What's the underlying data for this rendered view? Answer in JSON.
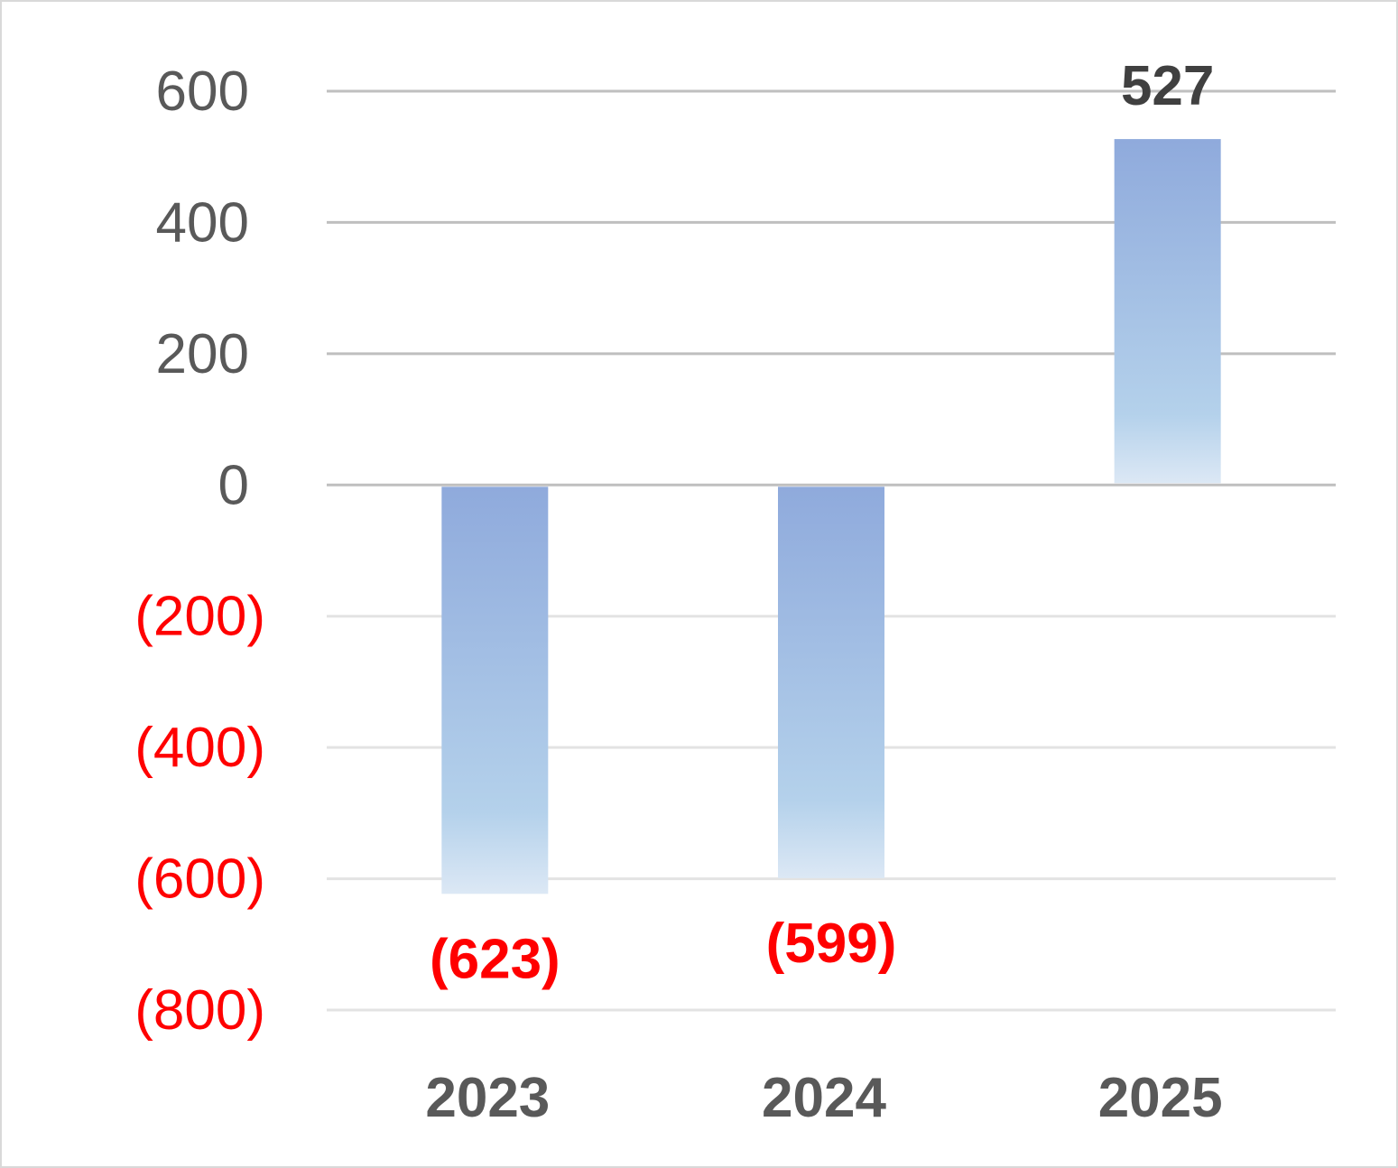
{
  "chart_data": {
    "type": "bar",
    "title": "",
    "xlabel": "",
    "ylabel": "",
    "categories": [
      "2023",
      "2024",
      "2025"
    ],
    "series": [
      {
        "values": [
          -623,
          -599,
          527
        ]
      }
    ],
    "data_labels": [
      "(623)",
      "(599)",
      "527"
    ],
    "ylim": [
      -800,
      600
    ],
    "yticks": [
      600,
      400,
      200,
      0,
      -200,
      -400,
      -600,
      -800
    ],
    "ytick_labels": [
      "600",
      "400",
      "200",
      "0",
      "(200)",
      "(400)",
      "(600)",
      "(800)"
    ],
    "grid": true,
    "legend": "none",
    "colors": {
      "bar_top": "#8faadc",
      "bar_bottom": "#dce8f5",
      "negative_text": "#ff0000",
      "positive_text": "#404040",
      "axis_text": "#595959",
      "gridline": "#bfbfbf"
    }
  }
}
